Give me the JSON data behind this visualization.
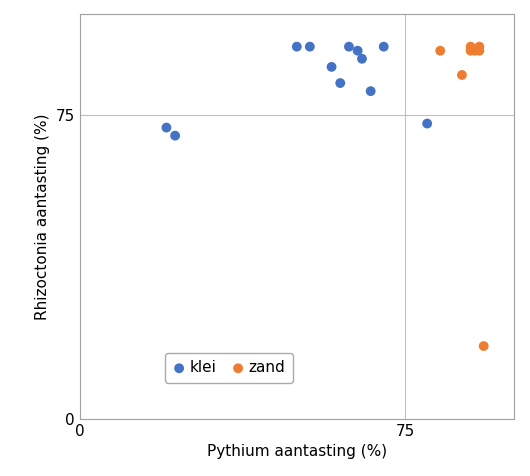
{
  "klei_x": [
    20,
    22,
    50,
    53,
    58,
    60,
    62,
    64,
    65,
    67,
    70,
    80
  ],
  "klei_y": [
    72,
    70,
    92,
    92,
    87,
    83,
    92,
    91,
    89,
    81,
    92,
    73
  ],
  "zand_x": [
    83,
    88,
    90,
    90,
    91,
    92,
    92,
    93
  ],
  "zand_y": [
    91,
    85,
    92,
    91,
    91,
    91,
    92,
    18
  ],
  "xlabel": "Pythium aantasting (%)",
  "ylabel": "Rhizoctonia aantasting (%)",
  "xlim": [
    0,
    100
  ],
  "ylim": [
    0,
    100
  ],
  "xticks": [
    0,
    75
  ],
  "yticks": [
    0,
    75
  ],
  "klei_color": "#4472C4",
  "zand_color": "#ED7D31",
  "legend_labels": [
    "klei",
    "zand"
  ],
  "marker_size": 50,
  "grid_color": "#C0C0C0",
  "background_color": "#FFFFFF",
  "label_fontsize": 11,
  "tick_fontsize": 11
}
